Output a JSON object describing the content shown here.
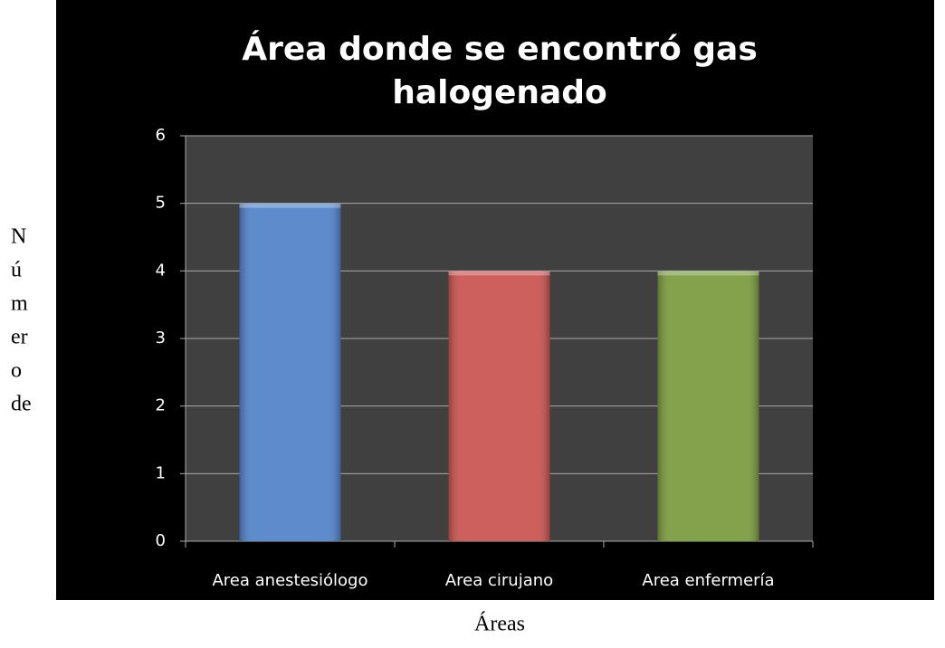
{
  "chart_data": {
    "type": "bar",
    "title": [
      "Área donde se encontró gas",
      "halogenado"
    ],
    "categories": [
      "Area anestesiólogo",
      "Area cirujano",
      "Area enfermería"
    ],
    "values": [
      5,
      4,
      4
    ],
    "colors": [
      "#4f81c7",
      "#c9524f",
      "#799a3d"
    ],
    "ylabel": [
      "N",
      "ú",
      "m",
      "er",
      "o",
      "de"
    ],
    "xlabel": "Áreas",
    "ylim": [
      0,
      6
    ],
    "yticks": [
      0,
      1,
      2,
      3,
      4,
      5,
      6
    ],
    "grid": true
  }
}
